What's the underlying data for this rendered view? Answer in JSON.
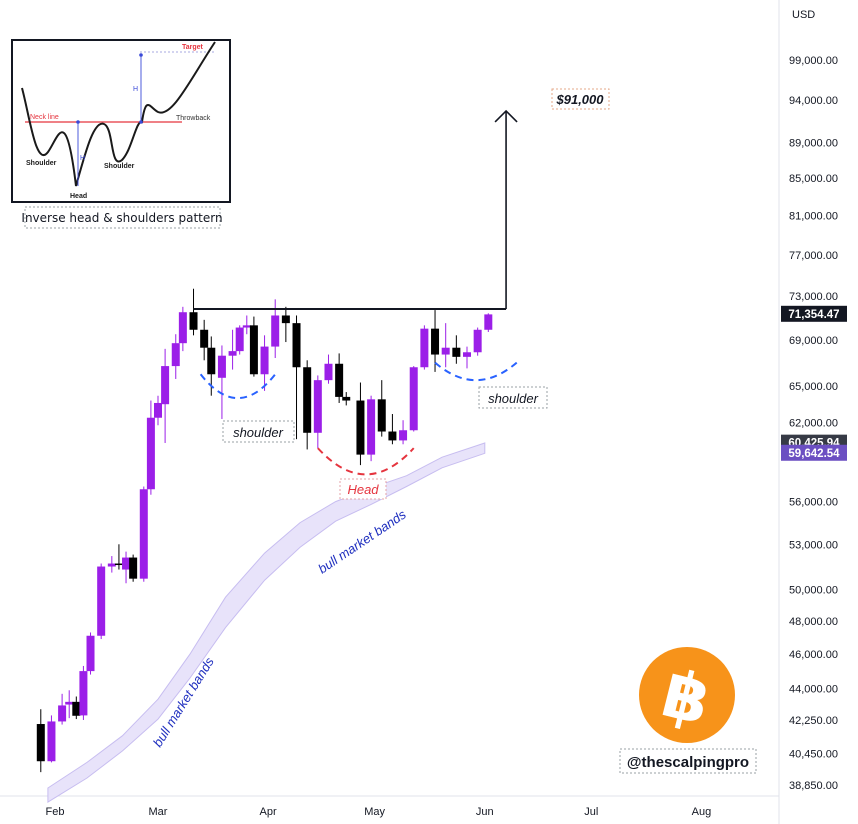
{
  "chart_data": {
    "type": "candlestick",
    "currency": "USD",
    "x_labels": [
      "Feb",
      "Mar",
      "Apr",
      "May",
      "Jun",
      "Jul",
      "Aug"
    ],
    "y_ticks": [
      "99,000.00",
      "94,000.00",
      "89,000.00",
      "85,000.00",
      "81,000.00",
      "77,000.00",
      "73,000.00",
      "69,000.00",
      "65,000.00",
      "62,000.00",
      "56,000.00",
      "53,000.00",
      "50,000.00",
      "48,000.00",
      "46,000.00",
      "44,000.00",
      "42,250.00",
      "40,450.00",
      "38,850.00"
    ],
    "price_badges": [
      {
        "label": "71,354.47",
        "value": 71354.47,
        "color": "#131722"
      },
      {
        "label": "60,425.94",
        "value": 60425.94,
        "color": "#363a45"
      },
      {
        "label": "59,642.54",
        "value": 59642.54,
        "color": "#6b4fc2"
      }
    ],
    "candles": [
      {
        "date": "2024-01-28",
        "o": 42030,
        "h": 42840,
        "l": 39500,
        "c": 40060
      },
      {
        "date": "2024-01-31",
        "o": 40060,
        "h": 42500,
        "l": 40000,
        "c": 42170
      },
      {
        "date": "2024-02-03",
        "o": 42170,
        "h": 43700,
        "l": 42000,
        "c": 43050
      },
      {
        "date": "2024-02-05",
        "o": 43100,
        "h": 43900,
        "l": 42350,
        "c": 43250
      },
      {
        "date": "2024-02-07",
        "o": 43250,
        "h": 43550,
        "l": 42300,
        "c": 42480
      },
      {
        "date": "2024-02-09",
        "o": 42500,
        "h": 45300,
        "l": 42250,
        "c": 45000
      },
      {
        "date": "2024-02-11",
        "o": 45000,
        "h": 47300,
        "l": 44800,
        "c": 47100
      },
      {
        "date": "2024-02-14",
        "o": 47100,
        "h": 51700,
        "l": 46900,
        "c": 51500
      },
      {
        "date": "2024-02-17",
        "o": 51500,
        "h": 52200,
        "l": 51100,
        "c": 51700
      },
      {
        "date": "2024-02-19",
        "o": 51700,
        "h": 53000,
        "l": 51300,
        "c": 51600
      },
      {
        "date": "2024-02-21",
        "o": 51300,
        "h": 52500,
        "l": 50400,
        "c": 52100
      },
      {
        "date": "2024-02-23",
        "o": 52100,
        "h": 52300,
        "l": 50500,
        "c": 50700
      },
      {
        "date": "2024-02-26",
        "o": 50700,
        "h": 57100,
        "l": 50500,
        "c": 56900
      },
      {
        "date": "2024-02-28",
        "o": 56900,
        "h": 63800,
        "l": 56500,
        "c": 62400
      },
      {
        "date": "2024-03-01",
        "o": 62400,
        "h": 64200,
        "l": 61800,
        "c": 63600
      },
      {
        "date": "2024-03-03",
        "o": 63500,
        "h": 68200,
        "l": 60400,
        "c": 66700
      },
      {
        "date": "2024-03-06",
        "o": 66700,
        "h": 69500,
        "l": 65600,
        "c": 68700
      },
      {
        "date": "2024-03-08",
        "o": 68700,
        "h": 72000,
        "l": 68000,
        "c": 71500
      },
      {
        "date": "2024-03-11",
        "o": 71500,
        "h": 73700,
        "l": 69400,
        "c": 69900
      },
      {
        "date": "2024-03-14",
        "o": 69900,
        "h": 70800,
        "l": 67200,
        "c": 68300
      },
      {
        "date": "2024-03-16",
        "o": 68300,
        "h": 69300,
        "l": 64200,
        "c": 66000
      },
      {
        "date": "2024-03-19",
        "o": 65700,
        "h": 68500,
        "l": 62300,
        "c": 67600
      },
      {
        "date": "2024-03-22",
        "o": 67600,
        "h": 69900,
        "l": 66400,
        "c": 68000
      },
      {
        "date": "2024-03-24",
        "o": 68000,
        "h": 70300,
        "l": 67700,
        "c": 70100
      },
      {
        "date": "2024-03-26",
        "o": 70100,
        "h": 71200,
        "l": 69500,
        "c": 70300
      },
      {
        "date": "2024-03-28",
        "o": 70300,
        "h": 71100,
        "l": 65800,
        "c": 66000
      },
      {
        "date": "2024-03-31",
        "o": 66000,
        "h": 69400,
        "l": 64600,
        "c": 68400
      },
      {
        "date": "2024-04-03",
        "o": 68400,
        "h": 72700,
        "l": 67400,
        "c": 71200
      },
      {
        "date": "2024-04-06",
        "o": 71200,
        "h": 72000,
        "l": 68800,
        "c": 70500
      },
      {
        "date": "2024-04-09",
        "o": 70500,
        "h": 71200,
        "l": 60700,
        "c": 66600
      },
      {
        "date": "2024-04-12",
        "o": 66600,
        "h": 67200,
        "l": 59900,
        "c": 61200
      },
      {
        "date": "2024-04-15",
        "o": 61200,
        "h": 65900,
        "l": 60000,
        "c": 65500
      },
      {
        "date": "2024-04-18",
        "o": 65500,
        "h": 67700,
        "l": 65200,
        "c": 66900
      },
      {
        "date": "2024-04-21",
        "o": 66900,
        "h": 67800,
        "l": 63600,
        "c": 64100
      },
      {
        "date": "2024-04-23",
        "o": 64100,
        "h": 64500,
        "l": 63400,
        "c": 63800
      },
      {
        "date": "2024-04-27",
        "o": 63800,
        "h": 65300,
        "l": 58700,
        "c": 59500
      },
      {
        "date": "2024-04-30",
        "o": 59500,
        "h": 64200,
        "l": 59000,
        "c": 63900
      },
      {
        "date": "2024-05-03",
        "o": 63900,
        "h": 65500,
        "l": 60900,
        "c": 61300
      },
      {
        "date": "2024-05-06",
        "o": 61300,
        "h": 62700,
        "l": 60300,
        "c": 60600
      },
      {
        "date": "2024-05-09",
        "o": 60600,
        "h": 62200,
        "l": 60300,
        "c": 61400
      },
      {
        "date": "2024-05-12",
        "o": 61400,
        "h": 66700,
        "l": 61300,
        "c": 66600
      },
      {
        "date": "2024-05-15",
        "o": 66600,
        "h": 70300,
        "l": 66400,
        "c": 70000
      },
      {
        "date": "2024-05-18",
        "o": 70000,
        "h": 71700,
        "l": 66200,
        "c": 67700
      },
      {
        "date": "2024-05-21",
        "o": 67700,
        "h": 70500,
        "l": 66600,
        "c": 68300
      },
      {
        "date": "2024-05-24",
        "o": 68300,
        "h": 69400,
        "l": 66900,
        "c": 67500
      },
      {
        "date": "2024-05-27",
        "o": 67500,
        "h": 68400,
        "l": 66500,
        "c": 67900
      },
      {
        "date": "2024-05-30",
        "o": 67900,
        "h": 70100,
        "l": 67600,
        "c": 69900
      },
      {
        "date": "2024-06-02",
        "o": 69900,
        "h": 71400,
        "l": 69700,
        "c": 71300
      }
    ],
    "bull_band": [
      {
        "date": "2024-01-30",
        "upper": 38700,
        "lower": 38000
      },
      {
        "date": "2024-02-10",
        "upper": 40000,
        "lower": 39200
      },
      {
        "date": "2024-02-20",
        "upper": 41400,
        "lower": 40600
      },
      {
        "date": "2024-03-01",
        "upper": 43400,
        "lower": 42300
      },
      {
        "date": "2024-03-10",
        "upper": 46000,
        "lower": 44600
      },
      {
        "date": "2024-03-20",
        "upper": 49500,
        "lower": 47600
      },
      {
        "date": "2024-03-31",
        "upper": 52400,
        "lower": 50600
      },
      {
        "date": "2024-04-10",
        "upper": 54500,
        "lower": 52800
      },
      {
        "date": "2024-04-20",
        "upper": 56000,
        "lower": 54600
      },
      {
        "date": "2024-04-30",
        "upper": 57000,
        "lower": 55800
      },
      {
        "date": "2024-05-10",
        "upper": 57900,
        "lower": 57100
      },
      {
        "date": "2024-05-20",
        "upper": 59300,
        "lower": 58500
      },
      {
        "date": "2024-06-01",
        "upper": 60400,
        "lower": 59600
      }
    ],
    "neckline": {
      "start": "2024-03-11",
      "end": "2024-06-07",
      "value": 71800
    },
    "arrow": {
      "date": "2024-06-07",
      "from": 71800,
      "to": 92700
    },
    "shoulder_arcs": [
      {
        "start": "2024-03-13",
        "end": "2024-04-03",
        "bottom": 64000,
        "ends": 66000
      },
      {
        "start": "2024-05-18",
        "end": "2024-06-10",
        "bottom": 65500,
        "ends": 67000
      }
    ],
    "head_arc": {
      "start": "2024-04-15",
      "end": "2024-05-12",
      "bottom": 58000,
      "ends": 60000
    }
  },
  "annotations": {
    "target": "$91,000",
    "left_shoulder": "shoulder",
    "right_shoulder": "shoulder",
    "head": "Head",
    "band_label_1": "bull market bands",
    "band_label_2": "bull market bands",
    "handle": "@thescalpingpro"
  },
  "inset": {
    "caption": "Inverse head & shoulders pattern",
    "labels": {
      "target": "Target",
      "neckline": "Neck line",
      "throwback": "Throwback",
      "shoulder_left": "Shoulder",
      "shoulder_right": "Shoulder",
      "head": "Head",
      "h1": "H",
      "h2": "H"
    }
  },
  "colors": {
    "bull": "#9b1fe8",
    "bear": "#000000",
    "band_fill": "#e8e3fa",
    "band_stroke": "#c7bdf0",
    "head": "#e5343e",
    "shoulder": "#2962ff",
    "bitcoin": "#f7931a"
  }
}
